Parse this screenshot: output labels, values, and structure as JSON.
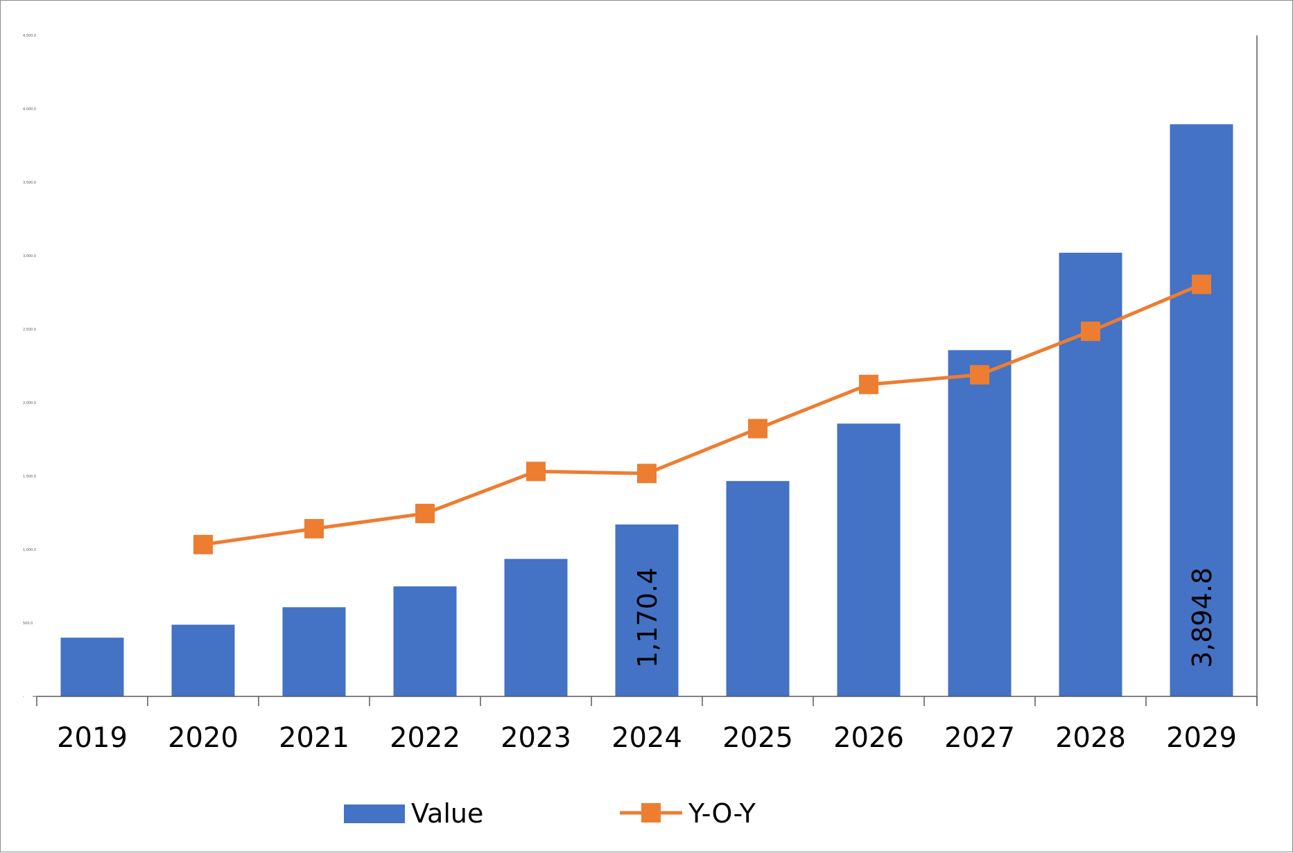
{
  "colors": {
    "bar": "#4472C4",
    "line": "#ED7D31",
    "axis": "#595959"
  },
  "chart_data": {
    "type": "bar",
    "categories": [
      "2019",
      "2020",
      "2021",
      "2022",
      "2023",
      "2024",
      "2025",
      "2026",
      "2027",
      "2028",
      "2029"
    ],
    "ylim": [
      0,
      4500
    ],
    "y_ticks": [
      "-",
      "500.0",
      "1,000.0",
      "1,500.0",
      "2,000.0",
      "2,500.0",
      "3,000.0",
      "3,500.0",
      "4,000.0",
      "4,500.0"
    ],
    "series": [
      {
        "name": "Value",
        "type": "bar",
        "axis": "left",
        "values": [
          400,
          488,
          607,
          749,
          936,
          1170.4,
          1466,
          1857,
          2357,
          3020,
          3894.8
        ]
      },
      {
        "name": "Y-O-Y",
        "type": "line",
        "axis": "secondary",
        "marker": "square",
        "values": [
          null,
          22.0,
          24.3,
          26.5,
          32.6,
          32.3,
          38.8,
          45.2,
          46.6,
          52.9,
          59.7
        ]
      }
    ],
    "secondary_ylim": [
      0,
      100
    ],
    "data_labels": [
      {
        "category": "2024",
        "text": "1,170.4"
      },
      {
        "category": "2029",
        "text": "3,894.8"
      }
    ],
    "legend": {
      "position": "bottom",
      "entries": [
        "Value",
        "Y-O-Y"
      ]
    },
    "grid": false,
    "title": "",
    "xlabel": "",
    "ylabel": ""
  }
}
